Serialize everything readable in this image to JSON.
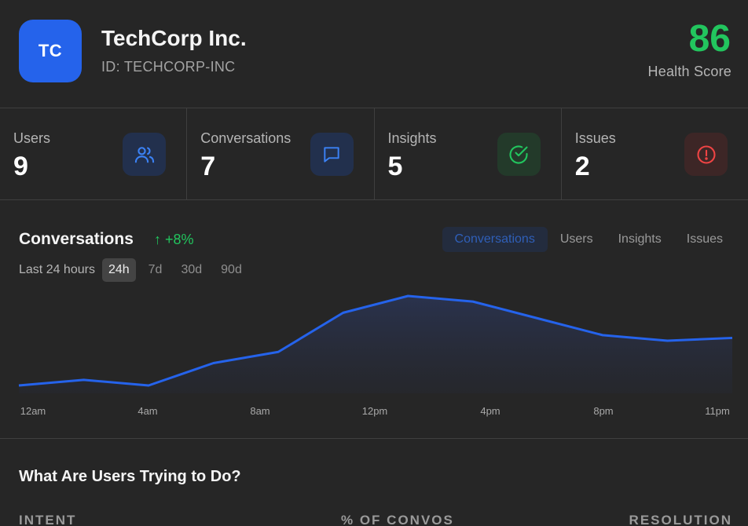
{
  "company": {
    "initials": "TC",
    "name": "TechCorp Inc.",
    "id_label": "ID: TECHCORP-INC",
    "health_score": "86",
    "health_label": "Health Score",
    "avatar_color": "#2563eb",
    "score_color": "#22c55e"
  },
  "stats": [
    {
      "label": "Users",
      "value": "9",
      "icon": "users-icon"
    },
    {
      "label": "Conversations",
      "value": "7",
      "icon": "chat-bubble-icon"
    },
    {
      "label": "Insights",
      "value": "5",
      "icon": "check-circle-icon"
    },
    {
      "label": "Issues",
      "value": "2",
      "icon": "alert-circle-icon"
    }
  ],
  "chart_section": {
    "title": "Conversations",
    "delta": "↑ +8%",
    "tabs": [
      "Conversations",
      "Users",
      "Insights",
      "Issues"
    ],
    "active_tab": "Conversations",
    "range_label": "Last 24 hours",
    "ranges": [
      "24h",
      "7d",
      "30d",
      "90d"
    ],
    "active_range": "24h"
  },
  "chart_data": {
    "type": "area",
    "x_tick_labels": [
      "12am",
      "4am",
      "8am",
      "12pm",
      "4pm",
      "8pm",
      "11pm"
    ],
    "series": [
      {
        "values": [
          0.0,
          1.0,
          0.0,
          4.0,
          6.0,
          13.0,
          16.0,
          15.0,
          12.0,
          9.0,
          8.0,
          8.5
        ]
      }
    ],
    "line_color": "#2563eb",
    "grid": false
  },
  "intent": {
    "title": "What Are Users Trying to Do?",
    "columns": [
      "INTENT",
      "% OF CONVOS",
      "RESOLUTION"
    ]
  }
}
